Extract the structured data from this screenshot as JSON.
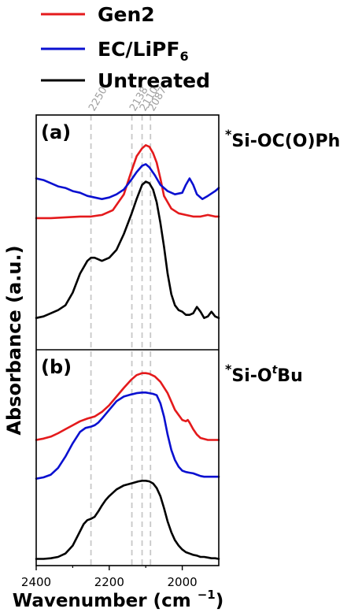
{
  "chart_data": {
    "type": "line",
    "xlabel": "Wavenumber (cm",
    "xlabel_sup": "−1",
    "xlabel_close": ")",
    "ylabel": "Absorbance (a.u.)",
    "xlim": [
      2400,
      1900
    ],
    "x_reversed": true,
    "xticks": [
      "2400",
      "2200",
      "2000"
    ],
    "legend": [
      {
        "label": "Gen2",
        "color": "#e41a1c"
      },
      {
        "label": "EC/LiPF",
        "sub": "6",
        "color": "#0a10d0"
      },
      {
        "label": "Untreated",
        "color": "#000000"
      }
    ],
    "reference_lines": {
      "color": "#c8c8c8",
      "values": [
        2250,
        2138,
        2110,
        2087
      ],
      "labels": [
        "2250",
        "2138",
        "2110",
        "2087"
      ]
    },
    "panels": [
      {
        "label": "(a)",
        "annotation": {
          "star": "*",
          "text": "Si-OC(O)Ph"
        },
        "series": [
          {
            "name": "Gen2",
            "color": "#e41a1c",
            "x": [
              2400,
              2360,
              2320,
              2280,
              2250,
              2220,
              2190,
              2160,
              2140,
              2125,
              2110,
              2100,
              2090,
              2080,
              2070,
              2060,
              2050,
              2030,
              2010,
              1990,
              1970,
              1950,
              1930,
              1910,
              1900
            ],
            "y": [
              0.03,
              0.03,
              0.035,
              0.04,
              0.04,
              0.05,
              0.08,
              0.18,
              0.32,
              0.42,
              0.47,
              0.49,
              0.48,
              0.44,
              0.38,
              0.28,
              0.17,
              0.09,
              0.06,
              0.05,
              0.04,
              0.04,
              0.05,
              0.04,
              0.04
            ]
          },
          {
            "name": "EC/LiPF6",
            "color": "#0a10d0",
            "x": [
              2400,
              2380,
              2360,
              2340,
              2320,
              2300,
              2280,
              2260,
              2240,
              2220,
              2200,
              2180,
              2160,
              2140,
              2125,
              2110,
              2100,
              2090,
              2075,
              2060,
              2040,
              2020,
              2000,
              1990,
              1980,
              1970,
              1960,
              1945,
              1930,
              1910,
              1900
            ],
            "y": [
              0.28,
              0.27,
              0.25,
              0.23,
              0.22,
              0.2,
              0.19,
              0.17,
              0.16,
              0.15,
              0.16,
              0.18,
              0.21,
              0.27,
              0.32,
              0.36,
              0.37,
              0.35,
              0.3,
              0.24,
              0.2,
              0.18,
              0.19,
              0.24,
              0.28,
              0.24,
              0.18,
              0.15,
              0.17,
              0.2,
              0.22
            ]
          },
          {
            "name": "Untreated",
            "color": "#000000",
            "x": [
              2400,
              2380,
              2360,
              2340,
              2320,
              2300,
              2280,
              2260,
              2250,
              2240,
              2230,
              2220,
              2200,
              2180,
              2160,
              2140,
              2125,
              2110,
              2100,
              2090,
              2080,
              2070,
              2060,
              2050,
              2040,
              2030,
              2020,
              2010,
              2000,
              1990,
              1980,
              1970,
              1960,
              1950,
              1940,
              1930,
              1920,
              1910,
              1900
            ],
            "y": [
              -0.6,
              -0.59,
              -0.57,
              -0.55,
              -0.52,
              -0.44,
              -0.32,
              -0.24,
              -0.22,
              -0.22,
              -0.23,
              -0.24,
              -0.22,
              -0.17,
              -0.07,
              0.05,
              0.15,
              0.24,
              0.26,
              0.25,
              0.21,
              0.13,
              0.0,
              -0.15,
              -0.32,
              -0.45,
              -0.52,
              -0.55,
              -0.56,
              -0.58,
              -0.58,
              -0.57,
              -0.53,
              -0.56,
              -0.6,
              -0.59,
              -0.56,
              -0.59,
              -0.6
            ]
          }
        ]
      },
      {
        "label": "(b)",
        "annotation": {
          "star": "*",
          "text": "Si-O",
          "sup": "t",
          "text_after": "Bu"
        },
        "series": [
          {
            "name": "Gen2",
            "color": "#e41a1c",
            "x": [
              2400,
              2380,
              2360,
              2340,
              2320,
              2300,
              2280,
              2260,
              2240,
              2220,
              2200,
              2180,
              2160,
              2140,
              2125,
              2110,
              2100,
              2090,
              2075,
              2060,
              2040,
              2020,
              2000,
              1990,
              1985,
              1980,
              1970,
              1960,
              1950,
              1930,
              1910,
              1900
            ],
            "y": [
              0.6,
              0.62,
              0.65,
              0.7,
              0.76,
              0.82,
              0.88,
              0.92,
              0.95,
              1.02,
              1.12,
              1.25,
              1.38,
              1.5,
              1.57,
              1.6,
              1.6,
              1.59,
              1.55,
              1.47,
              1.3,
              1.05,
              0.9,
              0.88,
              0.9,
              0.86,
              0.76,
              0.68,
              0.63,
              0.6,
              0.6,
              0.6
            ]
          },
          {
            "name": "EC/LiPF6",
            "color": "#0a10d0",
            "x": [
              2400,
              2380,
              2360,
              2340,
              2320,
              2300,
              2280,
              2265,
              2250,
              2240,
              2230,
              2220,
              2200,
              2180,
              2160,
              2140,
              2125,
              2110,
              2100,
              2090,
              2080,
              2070,
              2060,
              2050,
              2040,
              2030,
              2020,
              2010,
              2000,
              1990,
              1980,
              1970,
              1960,
              1950,
              1940,
              1930,
              1920,
              1910,
              1900
            ],
            "y": [
              0.02,
              0.04,
              0.08,
              0.18,
              0.35,
              0.55,
              0.72,
              0.78,
              0.8,
              0.82,
              0.86,
              0.92,
              1.05,
              1.18,
              1.25,
              1.28,
              1.3,
              1.31,
              1.31,
              1.3,
              1.29,
              1.27,
              1.15,
              0.95,
              0.68,
              0.45,
              0.3,
              0.2,
              0.14,
              0.12,
              0.11,
              0.1,
              0.08,
              0.06,
              0.05,
              0.05,
              0.05,
              0.05,
              0.05
            ]
          },
          {
            "name": "Untreated",
            "color": "#000000",
            "x": [
              2400,
              2380,
              2360,
              2340,
              2320,
              2300,
              2285,
              2270,
              2260,
              2250,
              2240,
              2230,
              2220,
              2210,
              2200,
              2180,
              2160,
              2140,
              2120,
              2110,
              2100,
              2090,
              2080,
              2070,
              2060,
              2050,
              2040,
              2030,
              2020,
              2010,
              2000,
              1990,
              1980,
              1970,
              1960,
              1950,
              1940,
              1930,
              1920,
              1910,
              1900
            ],
            "y": [
              -1.18,
              -1.18,
              -1.17,
              -1.15,
              -1.1,
              -0.98,
              -0.82,
              -0.66,
              -0.6,
              -0.58,
              -0.55,
              -0.47,
              -0.38,
              -0.3,
              -0.24,
              -0.14,
              -0.08,
              -0.05,
              -0.02,
              -0.01,
              -0.01,
              -0.02,
              -0.05,
              -0.12,
              -0.24,
              -0.42,
              -0.62,
              -0.78,
              -0.9,
              -0.98,
              -1.04,
              -1.08,
              -1.1,
              -1.12,
              -1.13,
              -1.15,
              -1.15,
              -1.16,
              -1.17,
              -1.17,
              -1.18
            ]
          }
        ]
      }
    ]
  }
}
